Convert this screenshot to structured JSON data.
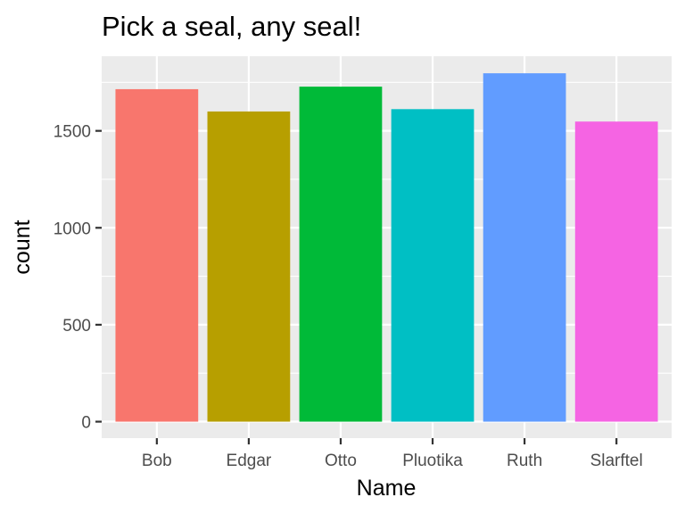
{
  "chart_data": {
    "type": "bar",
    "title": "Pick a seal, any seal!",
    "xlabel": "Name",
    "ylabel": "count",
    "categories": [
      "Bob",
      "Edgar",
      "Otto",
      "Pluotika",
      "Ruth",
      "Slarftel"
    ],
    "values": [
      1715,
      1600,
      1728,
      1612,
      1797,
      1548
    ],
    "colors": [
      "#F8766D",
      "#B79F00",
      "#00BA38",
      "#00BFC4",
      "#619CFF",
      "#F564E3"
    ],
    "yticks": [
      0,
      500,
      1000,
      1500
    ],
    "ytick_labels": [
      "0",
      "500",
      "1000",
      "1500"
    ],
    "ylim": [
      -85,
      1885
    ],
    "grid": true,
    "panel_background": "#EBEBEB",
    "legend": "none"
  }
}
